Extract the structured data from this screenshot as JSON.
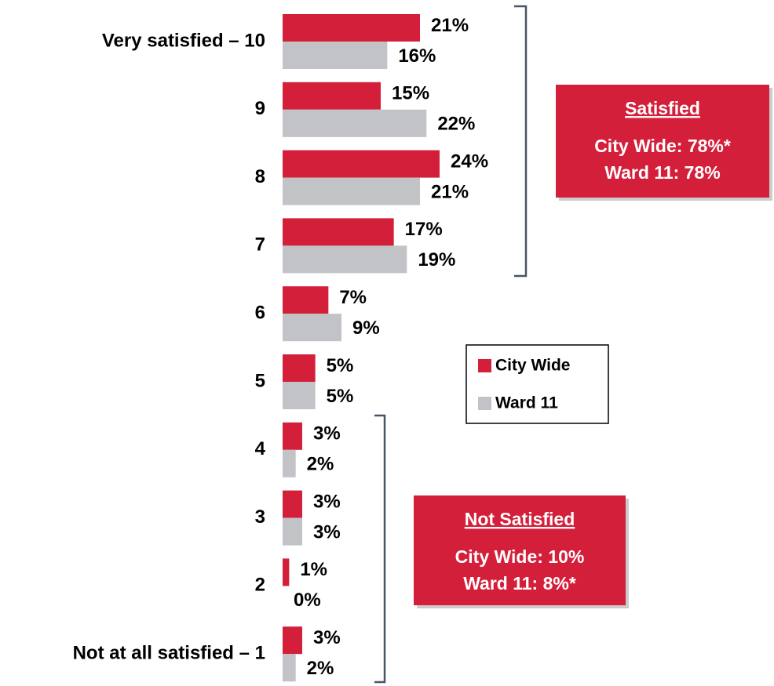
{
  "chart_data": {
    "type": "bar",
    "categories": [
      "Very satisfied – 10",
      "9",
      "8",
      "7",
      "6",
      "5",
      "4",
      "3",
      "2",
      "Not at all satisfied – 1"
    ],
    "series": [
      {
        "name": "City Wide",
        "color": "#d41f3a",
        "values": [
          21,
          15,
          24,
          17,
          7,
          5,
          3,
          3,
          1,
          3
        ],
        "value_labels": [
          "21%",
          "15%",
          "24%",
          "17%",
          "7%",
          "5%",
          "3%",
          "3%",
          "1%",
          "3%"
        ]
      },
      {
        "name": "Ward 11",
        "color": "#c1c3c7",
        "values": [
          16,
          22,
          21,
          19,
          9,
          5,
          2,
          3,
          0,
          2
        ],
        "value_labels": [
          "16%",
          "22%",
          "21%",
          "19%",
          "9%",
          "5%",
          "2%",
          "3%",
          "0%",
          "2%"
        ]
      }
    ],
    "annotations": [
      {
        "title": "Satisfied",
        "lines": [
          "City Wide: 78%*",
          "Ward 11: 78%"
        ],
        "color": "#d41f3a"
      },
      {
        "title": "Not Satisfied",
        "lines": [
          "City Wide: 10%",
          "Ward 11: 8%*"
        ],
        "color": "#d41f3a"
      }
    ]
  }
}
